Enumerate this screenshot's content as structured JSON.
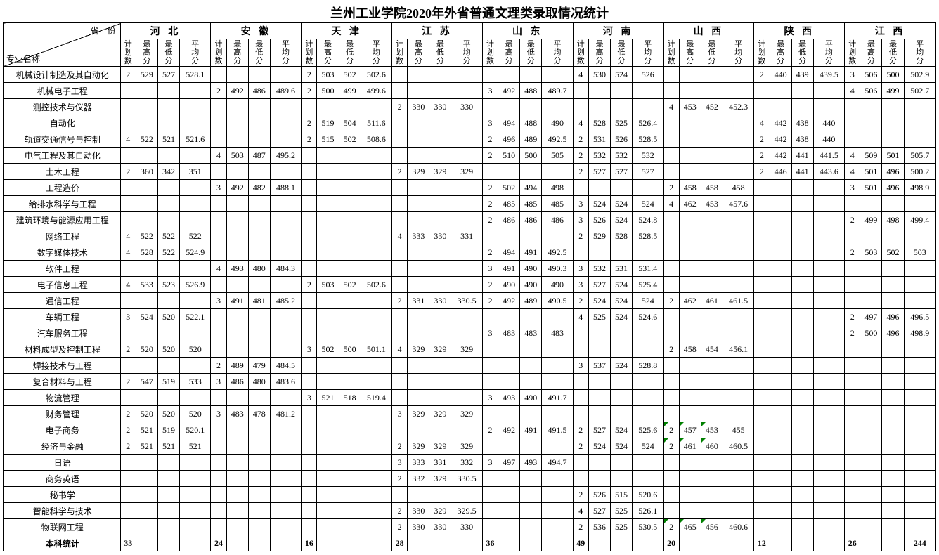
{
  "title": "兰州工业学院2020年外省普通文理类录取情况统计",
  "corner": {
    "top_right": "省　份",
    "bottom_left": "专业名称"
  },
  "sub_headers": [
    "计划数",
    "最高分",
    "最低分",
    "平均分"
  ],
  "provinces": [
    "河 北",
    "安 徽",
    "天 津",
    "江 苏",
    "山 东",
    "河 南",
    "山 西",
    "陕 西",
    "江 西"
  ],
  "majors": [
    "机械设计制造及其自动化",
    "机械电子工程",
    "测控技术与仪器",
    "自动化",
    "轨道交通信号与控制",
    "电气工程及其自动化",
    "土木工程",
    "工程造价",
    "给排水科学与工程",
    "建筑环境与能源应用工程",
    "网络工程",
    "数字媒体技术",
    "软件工程",
    "电子信息工程",
    "通信工程",
    "车辆工程",
    "汽车服务工程",
    "材料成型及控制工程",
    "焊接技术与工程",
    "复合材料与工程",
    "物流管理",
    "财务管理",
    "电子商务",
    "经济与金融",
    "日语",
    "商务英语",
    "秘书学",
    "智能科学与技术",
    "物联网工程"
  ],
  "total_label": "本科统计",
  "totals": [
    "33",
    "",
    "",
    "",
    "24",
    "",
    "",
    "",
    "16",
    "",
    "",
    "",
    "28",
    "",
    "",
    "",
    "36",
    "",
    "",
    "",
    "49",
    "",
    "",
    "",
    "20",
    "",
    "",
    "",
    "12",
    "",
    "",
    "",
    "26",
    "",
    "",
    "244"
  ],
  "flagged": [
    [
      22,
      24
    ],
    [
      22,
      25
    ],
    [
      22,
      26
    ],
    [
      23,
      24
    ],
    [
      23,
      25
    ],
    [
      23,
      26
    ],
    [
      28,
      24
    ],
    [
      28,
      25
    ],
    [
      28,
      26
    ]
  ],
  "rows": [
    [
      "2",
      "529",
      "527",
      "528.1",
      "",
      "",
      "",
      "",
      "2",
      "503",
      "502",
      "502.6",
      "",
      "",
      "",
      "",
      "",
      "",
      "",
      "",
      "4",
      "530",
      "524",
      "526",
      "",
      "",
      "",
      "",
      "2",
      "440",
      "439",
      "439.5",
      "3",
      "506",
      "500",
      "502.9"
    ],
    [
      "",
      "",
      "",
      "",
      "2",
      "492",
      "486",
      "489.6",
      "2",
      "500",
      "499",
      "499.6",
      "",
      "",
      "",
      "",
      "3",
      "492",
      "488",
      "489.7",
      "",
      "",
      "",
      "",
      "",
      "",
      "",
      "",
      "",
      "",
      "",
      "",
      "4",
      "506",
      "499",
      "502.7"
    ],
    [
      "",
      "",
      "",
      "",
      "",
      "",
      "",
      "",
      "",
      "",
      "",
      "",
      "2",
      "330",
      "330",
      "330",
      "",
      "",
      "",
      "",
      "",
      "",
      "",
      "",
      "4",
      "453",
      "452",
      "452.3",
      "",
      "",
      "",
      "",
      "",
      "",
      "",
      ""
    ],
    [
      "",
      "",
      "",
      "",
      "",
      "",
      "",
      "",
      "2",
      "519",
      "504",
      "511.6",
      "",
      "",
      "",
      "",
      "3",
      "494",
      "488",
      "490",
      "4",
      "528",
      "525",
      "526.4",
      "",
      "",
      "",
      "",
      "4",
      "442",
      "438",
      "440",
      "",
      "",
      "",
      ""
    ],
    [
      "4",
      "522",
      "521",
      "521.6",
      "",
      "",
      "",
      "",
      "2",
      "515",
      "502",
      "508.6",
      "",
      "",
      "",
      "",
      "2",
      "496",
      "489",
      "492.5",
      "2",
      "531",
      "526",
      "528.5",
      "",
      "",
      "",
      "",
      "2",
      "442",
      "438",
      "440",
      "",
      "",
      "",
      ""
    ],
    [
      "",
      "",
      "",
      "",
      "4",
      "503",
      "487",
      "495.2",
      "",
      "",
      "",
      "",
      "",
      "",
      "",
      "",
      "2",
      "510",
      "500",
      "505",
      "2",
      "532",
      "532",
      "532",
      "",
      "",
      "",
      "",
      "2",
      "442",
      "441",
      "441.5",
      "4",
      "509",
      "501",
      "505.7"
    ],
    [
      "2",
      "360",
      "342",
      "351",
      "",
      "",
      "",
      "",
      "",
      "",
      "",
      "",
      "2",
      "329",
      "329",
      "329",
      "",
      "",
      "",
      "",
      "2",
      "527",
      "527",
      "527",
      "",
      "",
      "",
      "",
      "2",
      "446",
      "441",
      "443.6",
      "4",
      "501",
      "496",
      "500.2"
    ],
    [
      "",
      "",
      "",
      "",
      "3",
      "492",
      "482",
      "488.1",
      "",
      "",
      "",
      "",
      "",
      "",
      "",
      "",
      "2",
      "502",
      "494",
      "498",
      "",
      "",
      "",
      "",
      "2",
      "458",
      "458",
      "458",
      "",
      "",
      "",
      "",
      "3",
      "501",
      "496",
      "498.9"
    ],
    [
      "",
      "",
      "",
      "",
      "",
      "",
      "",
      "",
      "",
      "",
      "",
      "",
      "",
      "",
      "",
      "",
      "2",
      "485",
      "485",
      "485",
      "3",
      "524",
      "524",
      "524",
      "4",
      "462",
      "453",
      "457.6",
      "",
      "",
      "",
      "",
      "",
      "",
      "",
      ""
    ],
    [
      "",
      "",
      "",
      "",
      "",
      "",
      "",
      "",
      "",
      "",
      "",
      "",
      "",
      "",
      "",
      "",
      "2",
      "486",
      "486",
      "486",
      "3",
      "526",
      "524",
      "524.8",
      "",
      "",
      "",
      "",
      "",
      "",
      "",
      "",
      "2",
      "499",
      "498",
      "499.4"
    ],
    [
      "4",
      "522",
      "522",
      "522",
      "",
      "",
      "",
      "",
      "",
      "",
      "",
      "",
      "4",
      "333",
      "330",
      "331",
      "",
      "",
      "",
      "",
      "2",
      "529",
      "528",
      "528.5",
      "",
      "",
      "",
      "",
      "",
      "",
      "",
      "",
      "",
      "",
      "",
      ""
    ],
    [
      "4",
      "528",
      "522",
      "524.9",
      "",
      "",
      "",
      "",
      "",
      "",
      "",
      "",
      "",
      "",
      "",
      "",
      "2",
      "494",
      "491",
      "492.5",
      "",
      "",
      "",
      "",
      "",
      "",
      "",
      "",
      "",
      "",
      "",
      "",
      "2",
      "503",
      "502",
      "503"
    ],
    [
      "",
      "",
      "",
      "",
      "4",
      "493",
      "480",
      "484.3",
      "",
      "",
      "",
      "",
      "",
      "",
      "",
      "",
      "3",
      "491",
      "490",
      "490.3",
      "3",
      "532",
      "531",
      "531.4",
      "",
      "",
      "",
      "",
      "",
      "",
      "",
      "",
      "",
      "",
      "",
      ""
    ],
    [
      "4",
      "533",
      "523",
      "526.9",
      "",
      "",
      "",
      "",
      "2",
      "503",
      "502",
      "502.6",
      "",
      "",
      "",
      "",
      "2",
      "490",
      "490",
      "490",
      "3",
      "527",
      "524",
      "525.4",
      "",
      "",
      "",
      "",
      "",
      "",
      "",
      "",
      "",
      "",
      "",
      ""
    ],
    [
      "",
      "",
      "",
      "",
      "3",
      "491",
      "481",
      "485.2",
      "",
      "",
      "",
      "",
      "2",
      "331",
      "330",
      "330.5",
      "2",
      "492",
      "489",
      "490.5",
      "2",
      "524",
      "524",
      "524",
      "2",
      "462",
      "461",
      "461.5",
      "",
      "",
      "",
      "",
      "",
      "",
      "",
      ""
    ],
    [
      "3",
      "524",
      "520",
      "522.1",
      "",
      "",
      "",
      "",
      "",
      "",
      "",
      "",
      "",
      "",
      "",
      "",
      "",
      "",
      "",
      "",
      "4",
      "525",
      "524",
      "524.6",
      "",
      "",
      "",
      "",
      "",
      "",
      "",
      "",
      "2",
      "497",
      "496",
      "496.5"
    ],
    [
      "",
      "",
      "",
      "",
      "",
      "",
      "",
      "",
      "",
      "",
      "",
      "",
      "",
      "",
      "",
      "",
      "3",
      "483",
      "483",
      "483",
      "",
      "",
      "",
      "",
      "",
      "",
      "",
      "",
      "",
      "",
      "",
      "",
      "2",
      "500",
      "496",
      "498.9"
    ],
    [
      "2",
      "520",
      "520",
      "520",
      "",
      "",
      "",
      "",
      "3",
      "502",
      "500",
      "501.1",
      "4",
      "329",
      "329",
      "329",
      "",
      "",
      "",
      "",
      "",
      "",
      "",
      "",
      "2",
      "458",
      "454",
      "456.1",
      "",
      "",
      "",
      "",
      "",
      "",
      "",
      ""
    ],
    [
      "",
      "",
      "",
      "",
      "2",
      "489",
      "479",
      "484.5",
      "",
      "",
      "",
      "",
      "",
      "",
      "",
      "",
      "",
      "",
      "",
      "",
      "3",
      "537",
      "524",
      "528.8",
      "",
      "",
      "",
      "",
      "",
      "",
      "",
      "",
      "",
      "",
      "",
      ""
    ],
    [
      "2",
      "547",
      "519",
      "533",
      "3",
      "486",
      "480",
      "483.6",
      "",
      "",
      "",
      "",
      "",
      "",
      "",
      "",
      "",
      "",
      "",
      "",
      "",
      "",
      "",
      "",
      "",
      "",
      "",
      "",
      "",
      "",
      "",
      "",
      "",
      "",
      "",
      ""
    ],
    [
      "",
      "",
      "",
      "",
      "",
      "",
      "",
      "",
      "3",
      "521",
      "518",
      "519.4",
      "",
      "",
      "",
      "",
      "3",
      "493",
      "490",
      "491.7",
      "",
      "",
      "",
      "",
      "",
      "",
      "",
      "",
      "",
      "",
      "",
      "",
      "",
      "",
      "",
      ""
    ],
    [
      "2",
      "520",
      "520",
      "520",
      "3",
      "483",
      "478",
      "481.2",
      "",
      "",
      "",
      "",
      "3",
      "329",
      "329",
      "329",
      "",
      "",
      "",
      "",
      "",
      "",
      "",
      "",
      "",
      "",
      "",
      "",
      "",
      "",
      "",
      "",
      "",
      "",
      "",
      ""
    ],
    [
      "2",
      "521",
      "519",
      "520.1",
      "",
      "",
      "",
      "",
      "",
      "",
      "",
      "",
      "",
      "",
      "",
      "",
      "2",
      "492",
      "491",
      "491.5",
      "2",
      "527",
      "524",
      "525.6",
      "2",
      "457",
      "453",
      "455",
      "",
      "",
      "",
      "",
      "",
      "",
      "",
      ""
    ],
    [
      "2",
      "521",
      "521",
      "521",
      "",
      "",
      "",
      "",
      "",
      "",
      "",
      "",
      "2",
      "329",
      "329",
      "329",
      "",
      "",
      "",
      "",
      "2",
      "524",
      "524",
      "524",
      "2",
      "461",
      "460",
      "460.5",
      "",
      "",
      "",
      "",
      "",
      "",
      "",
      ""
    ],
    [
      "",
      "",
      "",
      "",
      "",
      "",
      "",
      "",
      "",
      "",
      "",
      "",
      "3",
      "333",
      "331",
      "332",
      "3",
      "497",
      "493",
      "494.7",
      "",
      "",
      "",
      "",
      "",
      "",
      "",
      "",
      "",
      "",
      "",
      "",
      "",
      "",
      "",
      ""
    ],
    [
      "",
      "",
      "",
      "",
      "",
      "",
      "",
      "",
      "",
      "",
      "",
      "",
      "2",
      "332",
      "329",
      "330.5",
      "",
      "",
      "",
      "",
      "",
      "",
      "",
      "",
      "",
      "",
      "",
      "",
      "",
      "",
      "",
      "",
      "",
      "",
      "",
      ""
    ],
    [
      "",
      "",
      "",
      "",
      "",
      "",
      "",
      "",
      "",
      "",
      "",
      "",
      "",
      "",
      "",
      "",
      "",
      "",
      "",
      "",
      "2",
      "526",
      "515",
      "520.6",
      "",
      "",
      "",
      "",
      "",
      "",
      "",
      "",
      "",
      "",
      "",
      ""
    ],
    [
      "",
      "",
      "",
      "",
      "",
      "",
      "",
      "",
      "",
      "",
      "",
      "",
      "2",
      "330",
      "329",
      "329.5",
      "",
      "",
      "",
      "",
      "4",
      "527",
      "525",
      "526.1",
      "",
      "",
      "",
      "",
      "",
      "",
      "",
      "",
      "",
      "",
      "",
      ""
    ],
    [
      "",
      "",
      "",
      "",
      "",
      "",
      "",
      "",
      "",
      "",
      "",
      "",
      "2",
      "330",
      "330",
      "330",
      "",
      "",
      "",
      "",
      "2",
      "536",
      "525",
      "530.5",
      "2",
      "465",
      "456",
      "460.6",
      "",
      "",
      "",
      "",
      "",
      "",
      "",
      ""
    ]
  ]
}
